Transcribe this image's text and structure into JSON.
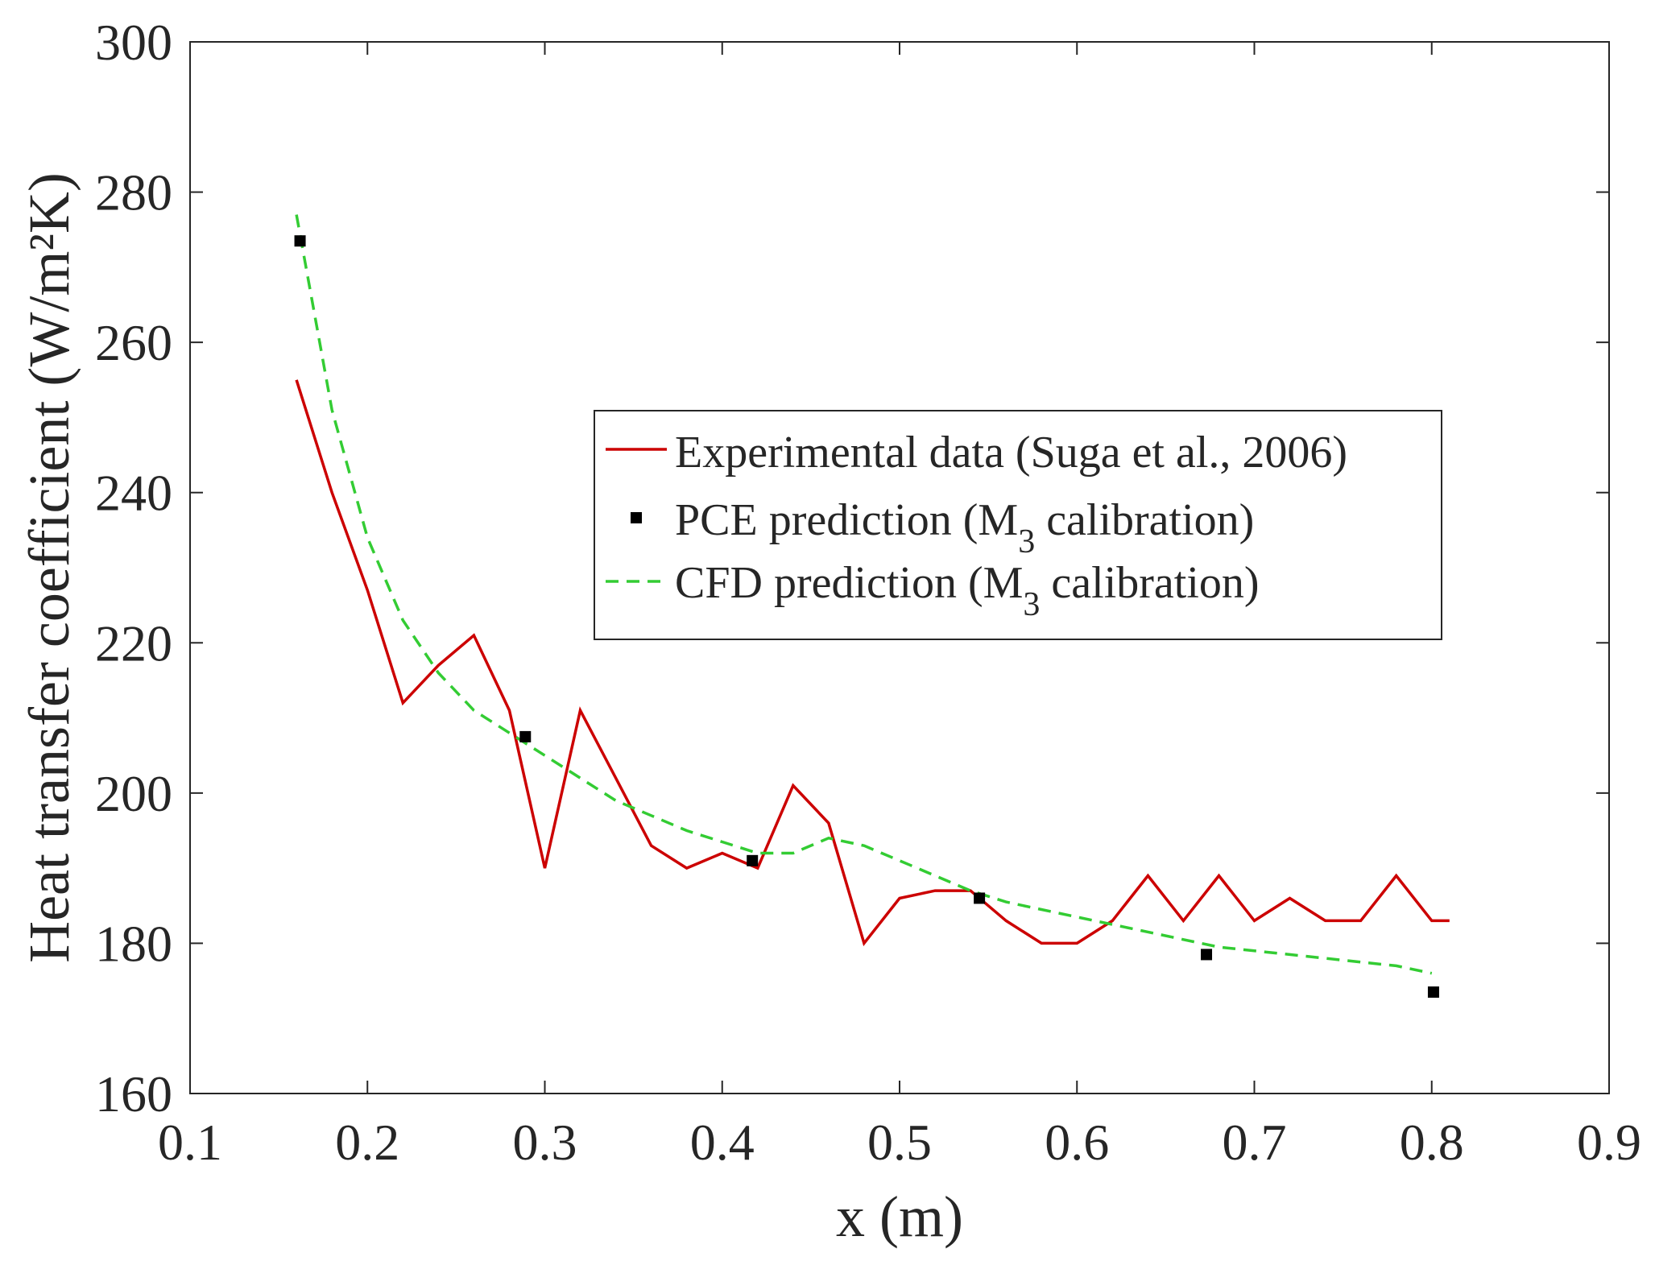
{
  "chart_data": {
    "type": "line",
    "title": "",
    "xlabel": "x (m)",
    "ylabel": "Heat transfer coefficient (W/m²K)",
    "xlim": [
      0.1,
      0.9
    ],
    "ylim": [
      160,
      300
    ],
    "xticks": [
      0.1,
      0.2,
      0.3,
      0.4,
      0.5,
      0.6,
      0.7,
      0.8,
      0.9
    ],
    "yticks": [
      160,
      180,
      200,
      220,
      240,
      260,
      280,
      300
    ],
    "xtick_labels": [
      "0.1",
      "0.2",
      "0.3",
      "0.4",
      "0.5",
      "0.6",
      "0.7",
      "0.8",
      "0.9"
    ],
    "ytick_labels": [
      "160",
      "180",
      "200",
      "220",
      "240",
      "260",
      "280",
      "300"
    ],
    "grid": false,
    "legend_position": "center-right",
    "series": [
      {
        "name": "Experimental data (Suga et al., 2006)",
        "style": "solid-line",
        "color": "#cc0000",
        "x": [
          0.16,
          0.18,
          0.2,
          0.22,
          0.24,
          0.26,
          0.28,
          0.3,
          0.32,
          0.34,
          0.36,
          0.38,
          0.4,
          0.42,
          0.44,
          0.46,
          0.48,
          0.5,
          0.52,
          0.54,
          0.56,
          0.58,
          0.6,
          0.62,
          0.64,
          0.66,
          0.68,
          0.7,
          0.72,
          0.74,
          0.76,
          0.78,
          0.8,
          0.81
        ],
        "values": [
          255,
          240,
          227,
          212,
          217,
          221,
          211,
          190,
          211,
          202,
          193,
          190,
          192,
          190,
          201,
          196,
          180,
          186,
          187,
          187,
          183,
          180,
          180,
          183,
          189,
          183,
          189,
          183,
          186,
          183,
          183,
          189,
          183,
          183
        ]
      },
      {
        "name": "PCE prediction (M3 calibration)",
        "name_main": "PCE prediction (M",
        "name_sub": "3",
        "name_tail": " calibration)",
        "style": "markers",
        "color": "#000000",
        "x": [
          0.162,
          0.289,
          0.417,
          0.545,
          0.673,
          0.801
        ],
        "values": [
          273.5,
          207.5,
          191,
          186,
          178.5,
          173.5
        ]
      },
      {
        "name": "CFD prediction (M3 calibration)",
        "name_main": "CFD prediction (M",
        "name_sub": "3",
        "name_tail": " calibration)",
        "style": "dashed-line",
        "color": "#33cc33",
        "x": [
          0.16,
          0.18,
          0.2,
          0.22,
          0.24,
          0.26,
          0.28,
          0.3,
          0.32,
          0.34,
          0.36,
          0.38,
          0.4,
          0.42,
          0.44,
          0.46,
          0.48,
          0.5,
          0.52,
          0.54,
          0.56,
          0.58,
          0.6,
          0.62,
          0.64,
          0.66,
          0.68,
          0.7,
          0.72,
          0.74,
          0.76,
          0.78,
          0.8
        ],
        "values": [
          277,
          251,
          234,
          223,
          216,
          211,
          208,
          205,
          202,
          199,
          197,
          195,
          193.5,
          192,
          192,
          194,
          193,
          191,
          189,
          187,
          185.5,
          184.5,
          183.5,
          182.5,
          181.5,
          180.5,
          179.5,
          179,
          178.5,
          178,
          177.5,
          177,
          176
        ]
      }
    ]
  }
}
